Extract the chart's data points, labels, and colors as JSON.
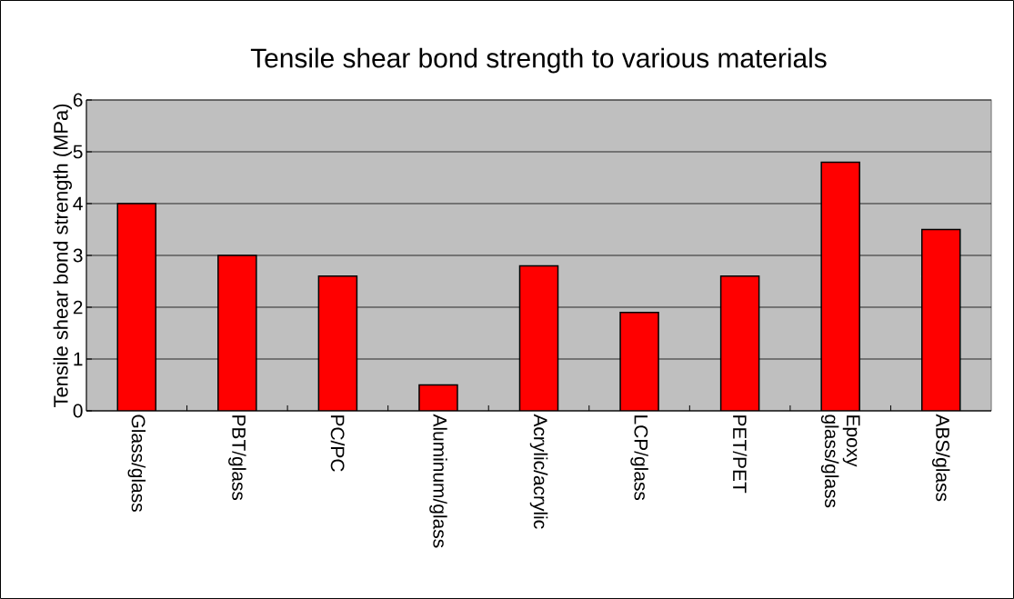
{
  "chart_data": {
    "type": "bar",
    "title": "Tensile shear bond strength to various materials",
    "ylabel": "Tensile shear bond strength (MPa)",
    "categories": [
      "Glass/glass",
      "PBT/glass",
      "PC/PC",
      "Aluminum/glass",
      "Acrylic/acrylic",
      "LCP/glass",
      "PET/PET",
      "Epoxy glass/glass",
      "ABS/glass"
    ],
    "values": [
      4.0,
      3.0,
      2.6,
      0.5,
      2.8,
      1.9,
      2.6,
      4.8,
      3.5
    ],
    "color": "#ff0000",
    "ylim": [
      0,
      6
    ],
    "yticks": [
      0,
      1,
      2,
      3,
      4,
      5,
      6
    ],
    "grid": "y"
  }
}
